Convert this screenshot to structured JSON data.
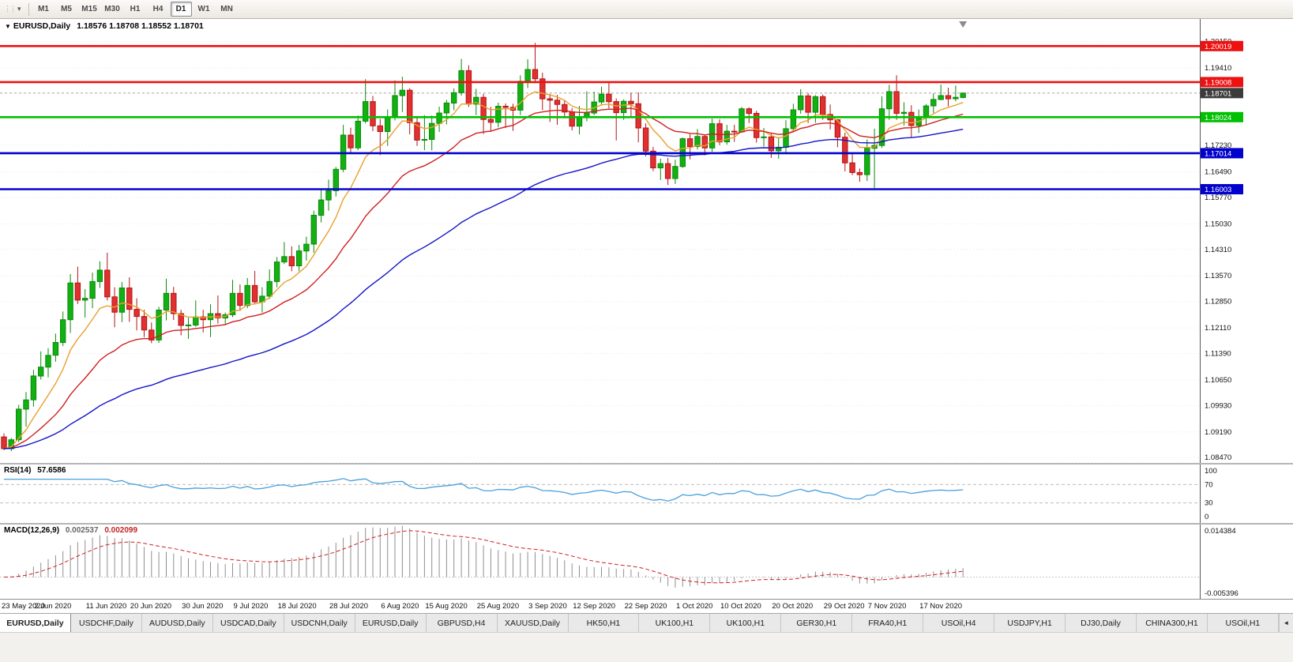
{
  "toolbar": {
    "grip_glyph": "⋮⋮",
    "dropdown_glyph": "▾",
    "timeframes": [
      "M1",
      "M5",
      "M15",
      "M30",
      "H1",
      "H4",
      "D1",
      "W1",
      "MN"
    ],
    "active_timeframe": "D1"
  },
  "chart_header": {
    "collapse_glyph": "▼",
    "symbol_period": "EURUSD,Daily",
    "ohlc": "1.18576 1.18708 1.18552 1.18701"
  },
  "chart_data": {
    "type": "candlestick",
    "symbol": "EURUSD",
    "timeframe": "Daily",
    "ylim": [
      1.0832,
      1.2078
    ],
    "y_ticks": [
      "1.20150",
      "1.19410",
      "1.18690",
      "1.17950",
      "1.17230",
      "1.16490",
      "1.15770",
      "1.15030",
      "1.14310",
      "1.13570",
      "1.12850",
      "1.12110",
      "1.11390",
      "1.10650",
      "1.09930",
      "1.09190",
      "1.08470"
    ],
    "colors": {
      "up_fill": "#12b012",
      "up_stroke": "#0a8a0a",
      "down_fill": "#e03030",
      "down_stroke": "#b31414",
      "grid": "#e6e6e6",
      "bid_line": "#a8a8a8"
    },
    "levels": [
      {
        "price": 1.20019,
        "label": "1.20019",
        "color": "#ee1111",
        "kind": "resistance"
      },
      {
        "price": 1.19008,
        "label": "1.19008",
        "color": "#ee1111",
        "kind": "resistance"
      },
      {
        "price": 1.18024,
        "label": "1.18024",
        "color": "#00c000",
        "kind": "pivot"
      },
      {
        "price": 1.17014,
        "label": "1.17014",
        "color": "#0202cc",
        "kind": "support"
      },
      {
        "price": 1.16003,
        "label": "1.16003",
        "color": "#0202cc",
        "kind": "support"
      }
    ],
    "current_price": {
      "value": 1.18701,
      "label": "1.18701",
      "color": "#3c3c3c"
    },
    "moving_averages": [
      {
        "period": 8,
        "color": "#e8a02e"
      },
      {
        "period": 21,
        "color": "#d02020"
      },
      {
        "period": 55,
        "color": "#1414c8"
      }
    ],
    "x_labels": [
      "23 May 2020",
      "2 Jun 2020",
      "11 Jun 2020",
      "20 Jun 2020",
      "30 Jun 2020",
      "9 Jul 2020",
      "18 Jul 2020",
      "28 Jul 2020",
      "6 Aug 2020",
      "15 Aug 2020",
      "25 Aug 2020",
      "3 Sep 2020",
      "12 Sep 2020",
      "22 Sep 2020",
      "1 Oct 2020",
      "10 Oct 2020",
      "20 Oct 2020",
      "29 Oct 2020",
      "7 Nov 2020",
      "17 Nov 2020"
    ],
    "x_label_indices": [
      0,
      7,
      14,
      20,
      27,
      34,
      40,
      47,
      54,
      60,
      67,
      74,
      80,
      87,
      94,
      100,
      107,
      114,
      120,
      127
    ],
    "candles": [
      [
        1.0905,
        1.0915,
        1.0868,
        1.0872
      ],
      [
        1.0872,
        1.0902,
        1.0865,
        1.0897
      ],
      [
        1.0897,
        1.0995,
        1.089,
        1.0983
      ],
      [
        1.0983,
        1.1031,
        1.0934,
        1.1009
      ],
      [
        1.1009,
        1.1093,
        1.099,
        1.1076
      ],
      [
        1.1076,
        1.1145,
        1.1066,
        1.1101
      ],
      [
        1.1101,
        1.1154,
        1.1072,
        1.1134
      ],
      [
        1.1134,
        1.1195,
        1.1116,
        1.117
      ],
      [
        1.117,
        1.1257,
        1.116,
        1.1234
      ],
      [
        1.1234,
        1.1362,
        1.1197,
        1.1337
      ],
      [
        1.1337,
        1.1383,
        1.1278,
        1.1289
      ],
      [
        1.1289,
        1.132,
        1.124,
        1.1294
      ],
      [
        1.1294,
        1.1366,
        1.1266,
        1.1341
      ],
      [
        1.1341,
        1.1398,
        1.1323,
        1.1373
      ],
      [
        1.1373,
        1.1422,
        1.1288,
        1.1298
      ],
      [
        1.1298,
        1.1325,
        1.1213,
        1.1255
      ],
      [
        1.1255,
        1.134,
        1.1227,
        1.1323
      ],
      [
        1.1323,
        1.1353,
        1.1228,
        1.1263
      ],
      [
        1.1263,
        1.1294,
        1.1204,
        1.1243
      ],
      [
        1.1243,
        1.1262,
        1.1185,
        1.1205
      ],
      [
        1.1205,
        1.1226,
        1.1168,
        1.1177
      ],
      [
        1.1177,
        1.127,
        1.1169,
        1.1261
      ],
      [
        1.1261,
        1.1349,
        1.1232,
        1.1308
      ],
      [
        1.1308,
        1.1326,
        1.1233,
        1.1251
      ],
      [
        1.1251,
        1.1262,
        1.119,
        1.1218
      ],
      [
        1.1218,
        1.1239,
        1.118,
        1.1219
      ],
      [
        1.1219,
        1.1288,
        1.1214,
        1.1242
      ],
      [
        1.1242,
        1.1262,
        1.1198,
        1.1234
      ],
      [
        1.1234,
        1.1277,
        1.1185,
        1.1251
      ],
      [
        1.1251,
        1.1302,
        1.1223,
        1.1239
      ],
      [
        1.1239,
        1.1254,
        1.1219,
        1.1248
      ],
      [
        1.1248,
        1.1346,
        1.1241,
        1.1308
      ],
      [
        1.1308,
        1.1333,
        1.1259,
        1.1274
      ],
      [
        1.1274,
        1.1351,
        1.1266,
        1.133
      ],
      [
        1.133,
        1.1371,
        1.128,
        1.1284
      ],
      [
        1.1284,
        1.1325,
        1.1254,
        1.13
      ],
      [
        1.13,
        1.1375,
        1.1292,
        1.1341
      ],
      [
        1.1341,
        1.141,
        1.1325,
        1.1396
      ],
      [
        1.1396,
        1.1452,
        1.139,
        1.1411
      ],
      [
        1.1411,
        1.144,
        1.137,
        1.1385
      ],
      [
        1.1385,
        1.1444,
        1.137,
        1.1427
      ],
      [
        1.1427,
        1.1467,
        1.14,
        1.1446
      ],
      [
        1.1446,
        1.154,
        1.1422,
        1.1527
      ],
      [
        1.1527,
        1.1601,
        1.1507,
        1.157
      ],
      [
        1.157,
        1.1627,
        1.154,
        1.1596
      ],
      [
        1.1596,
        1.1663,
        1.158,
        1.1656
      ],
      [
        1.1656,
        1.1781,
        1.1648,
        1.1752
      ],
      [
        1.1752,
        1.1773,
        1.1701,
        1.1716
      ],
      [
        1.1716,
        1.1807,
        1.171,
        1.1791
      ],
      [
        1.1791,
        1.1909,
        1.1785,
        1.1846
      ],
      [
        1.1846,
        1.1862,
        1.1763,
        1.1778
      ],
      [
        1.1778,
        1.1797,
        1.1696,
        1.1762
      ],
      [
        1.1762,
        1.1824,
        1.1722,
        1.1804
      ],
      [
        1.1804,
        1.1906,
        1.1793,
        1.1863
      ],
      [
        1.1863,
        1.1916,
        1.1817,
        1.1878
      ],
      [
        1.1878,
        1.1884,
        1.1754,
        1.1787
      ],
      [
        1.1787,
        1.1803,
        1.1722,
        1.1738
      ],
      [
        1.1738,
        1.1808,
        1.171,
        1.174
      ],
      [
        1.174,
        1.1807,
        1.1709,
        1.1785
      ],
      [
        1.1785,
        1.1832,
        1.1761,
        1.1814
      ],
      [
        1.1814,
        1.1851,
        1.1782,
        1.1842
      ],
      [
        1.1842,
        1.1883,
        1.1822,
        1.1871
      ],
      [
        1.1871,
        1.1966,
        1.1863,
        1.1933
      ],
      [
        1.1933,
        1.1948,
        1.1831,
        1.1839
      ],
      [
        1.1839,
        1.1882,
        1.1808,
        1.1858
      ],
      [
        1.1858,
        1.1868,
        1.1755,
        1.1796
      ],
      [
        1.1796,
        1.1831,
        1.1763,
        1.1788
      ],
      [
        1.1788,
        1.1843,
        1.1774,
        1.1833
      ],
      [
        1.1833,
        1.1841,
        1.1772,
        1.183
      ],
      [
        1.183,
        1.184,
        1.1764,
        1.1822
      ],
      [
        1.1822,
        1.192,
        1.1808,
        1.1903
      ],
      [
        1.1903,
        1.1965,
        1.1884,
        1.1936
      ],
      [
        1.1936,
        1.2011,
        1.1898,
        1.191
      ],
      [
        1.191,
        1.1927,
        1.1822,
        1.1854
      ],
      [
        1.1854,
        1.1868,
        1.1789,
        1.185
      ],
      [
        1.185,
        1.1865,
        1.1781,
        1.1838
      ],
      [
        1.1838,
        1.1849,
        1.1799,
        1.1817
      ],
      [
        1.1817,
        1.1828,
        1.1765,
        1.1777
      ],
      [
        1.1777,
        1.1834,
        1.1754,
        1.1801
      ],
      [
        1.1801,
        1.1875,
        1.1791,
        1.1814
      ],
      [
        1.1814,
        1.1874,
        1.1808,
        1.1845
      ],
      [
        1.1845,
        1.1888,
        1.1838,
        1.1867
      ],
      [
        1.1867,
        1.1901,
        1.1827,
        1.1846
      ],
      [
        1.1846,
        1.1855,
        1.1737,
        1.1815
      ],
      [
        1.1815,
        1.1852,
        1.1795,
        1.1847
      ],
      [
        1.1847,
        1.1871,
        1.1805,
        1.184
      ],
      [
        1.184,
        1.1872,
        1.1732,
        1.1772
      ],
      [
        1.1772,
        1.1785,
        1.1692,
        1.1707
      ],
      [
        1.1707,
        1.1719,
        1.1651,
        1.166
      ],
      [
        1.166,
        1.1686,
        1.1626,
        1.1672
      ],
      [
        1.1672,
        1.1688,
        1.1612,
        1.163
      ],
      [
        1.163,
        1.1683,
        1.1615,
        1.1664
      ],
      [
        1.1664,
        1.1745,
        1.166,
        1.1742
      ],
      [
        1.1742,
        1.1755,
        1.1684,
        1.172
      ],
      [
        1.172,
        1.1769,
        1.1712,
        1.1748
      ],
      [
        1.1748,
        1.1752,
        1.1695,
        1.1716
      ],
      [
        1.1716,
        1.1798,
        1.1705,
        1.1784
      ],
      [
        1.1784,
        1.1796,
        1.1724,
        1.1733
      ],
      [
        1.1733,
        1.1781,
        1.1725,
        1.1763
      ],
      [
        1.1763,
        1.1781,
        1.1733,
        1.1761
      ],
      [
        1.1761,
        1.1831,
        1.1758,
        1.1826
      ],
      [
        1.1826,
        1.183,
        1.1786,
        1.1813
      ],
      [
        1.1813,
        1.182,
        1.1731,
        1.1745
      ],
      [
        1.1745,
        1.1772,
        1.172,
        1.1747
      ],
      [
        1.1747,
        1.1758,
        1.1688,
        1.1708
      ],
      [
        1.1708,
        1.1746,
        1.1686,
        1.1718
      ],
      [
        1.1718,
        1.1794,
        1.1703,
        1.177
      ],
      [
        1.177,
        1.184,
        1.176,
        1.1823
      ],
      [
        1.1823,
        1.1881,
        1.1812,
        1.1862
      ],
      [
        1.1862,
        1.187,
        1.1786,
        1.1816
      ],
      [
        1.1816,
        1.1864,
        1.1787,
        1.186
      ],
      [
        1.186,
        1.1866,
        1.1795,
        1.181
      ],
      [
        1.181,
        1.1838,
        1.1768,
        1.1795
      ],
      [
        1.1795,
        1.1797,
        1.1718,
        1.1746
      ],
      [
        1.1746,
        1.1759,
        1.165,
        1.1674
      ],
      [
        1.1674,
        1.1704,
        1.164,
        1.1647
      ],
      [
        1.1647,
        1.1658,
        1.1621,
        1.1641
      ],
      [
        1.1641,
        1.174,
        1.1623,
        1.1715
      ],
      [
        1.1715,
        1.177,
        1.1603,
        1.1723
      ],
      [
        1.1723,
        1.1861,
        1.1716,
        1.1826
      ],
      [
        1.1826,
        1.1893,
        1.1795,
        1.1874
      ],
      [
        1.1874,
        1.192,
        1.1795,
        1.1813
      ],
      [
        1.1813,
        1.1844,
        1.1779,
        1.1816
      ],
      [
        1.1816,
        1.1836,
        1.1745,
        1.1779
      ],
      [
        1.1779,
        1.1824,
        1.1758,
        1.1804
      ],
      [
        1.1804,
        1.1839,
        1.1779,
        1.1834
      ],
      [
        1.1834,
        1.1869,
        1.1814,
        1.1852
      ],
      [
        1.1852,
        1.1894,
        1.185,
        1.1863
      ],
      [
        1.1863,
        1.1885,
        1.1833,
        1.1854
      ],
      [
        1.1854,
        1.1891,
        1.1847,
        1.1858
      ],
      [
        1.18576,
        1.18708,
        1.18552,
        1.18701
      ]
    ],
    "indicators": {
      "rsi": {
        "name": "RSI(14)",
        "value": "57.6586",
        "period": 14,
        "levels": [
          "100",
          "70",
          "30",
          "0"
        ],
        "color": "#4aa0dd"
      },
      "macd": {
        "name": "MACD(12,26,9)",
        "value_main": "0.002537",
        "value_signal": "0.002099",
        "fast": 12,
        "slow": 26,
        "signal_period": 9,
        "scale_top": "0.014384",
        "scale_bottom": "-0.005396",
        "histogram_color": "#8f8f8f",
        "signal_color": "#d02020"
      }
    }
  },
  "tabs": {
    "items": [
      {
        "label": "EURUSD,Daily",
        "active": true
      },
      {
        "label": "USDCHF,Daily",
        "active": false
      },
      {
        "label": "AUDUSD,Daily",
        "active": false
      },
      {
        "label": "USDCAD,Daily",
        "active": false
      },
      {
        "label": "USDCNH,Daily",
        "active": false
      },
      {
        "label": "EURUSD,Daily",
        "active": false
      },
      {
        "label": "GBPUSD,H4",
        "active": false
      },
      {
        "label": "XAUUSD,Daily",
        "active": false
      },
      {
        "label": "HK50,H1",
        "active": false
      },
      {
        "label": "UK100,H1",
        "active": false
      },
      {
        "label": "UK100,H1",
        "active": false
      },
      {
        "label": "GER30,H1",
        "active": false
      },
      {
        "label": "FRA40,H1",
        "active": false
      },
      {
        "label": "USOil,H4",
        "active": false
      },
      {
        "label": "USDJPY,H1",
        "active": false
      },
      {
        "label": "DJ30,Daily",
        "active": false
      },
      {
        "label": "CHINA300,H1",
        "active": false
      },
      {
        "label": "USOil,H1",
        "active": false
      }
    ],
    "scroll_left_glyph": "◄"
  }
}
